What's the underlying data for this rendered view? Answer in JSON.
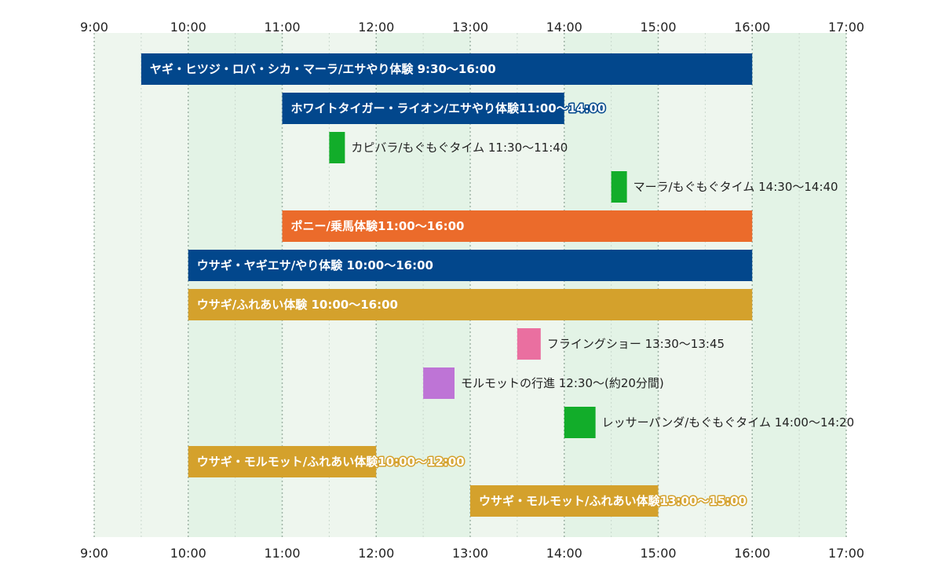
{
  "chart_data": {
    "type": "timeline",
    "x_unit": "hour",
    "xlim": [
      9,
      17
    ],
    "ticks": [
      "9:00",
      "10:00",
      "11:00",
      "12:00",
      "13:00",
      "14:00",
      "15:00",
      "16:00",
      "17:00"
    ],
    "grid": true,
    "tasks": [
      {
        "label": "ヤギ・ヒツジ・ロバ・シカ・マーラ/エサやり体験 9:30〜16:00",
        "start": 9.5,
        "end": 16.0,
        "color": "#02478c",
        "label_style": "inside"
      },
      {
        "label": "ホワイトタイガー・ライオン/エサやり体験11:00〜14:00",
        "start": 11.0,
        "end": 14.0,
        "color": "#02478c",
        "label_style": "inside"
      },
      {
        "label": "カピバラ/もぐもぐタイム 11:30〜11:40",
        "start": 11.5,
        "end": 11.667,
        "color": "#12ad2a",
        "label_style": "outside"
      },
      {
        "label": "マーラ/もぐもぐタイム 14:30〜14:40",
        "start": 14.5,
        "end": 14.667,
        "color": "#12ad2a",
        "label_style": "outside"
      },
      {
        "label": "ポニー/乗馬体験11:00〜16:00",
        "start": 11.0,
        "end": 16.0,
        "color": "#eb6b2b",
        "label_style": "inside"
      },
      {
        "label": "ウサギ・ヤギエサ/やり体験 10:00〜16:00",
        "start": 10.0,
        "end": 16.0,
        "color": "#02478c",
        "label_style": "inside"
      },
      {
        "label": "ウサギ/ふれあい体験 10:00〜16:00",
        "start": 10.0,
        "end": 16.0,
        "color": "#d4a12c",
        "label_style": "inside"
      },
      {
        "label": "フライングショー 13:30〜13:45",
        "start": 13.5,
        "end": 13.75,
        "color": "#ea6fa0",
        "label_style": "outside"
      },
      {
        "label": "モルモットの行進 12:30〜(約20分間)",
        "start": 12.5,
        "end": 12.833,
        "color": "#be74d6",
        "label_style": "outside"
      },
      {
        "label": "レッサーパンダ/もぐもぐタイム 14:00〜14:20",
        "start": 14.0,
        "end": 14.333,
        "color": "#12ad2a",
        "label_style": "outside"
      },
      {
        "label": "ウサギ・モルモット/ふれあい体験10:00〜12:00",
        "start": 10.0,
        "end": 12.0,
        "color": "#d4a12c",
        "label_style": "inside"
      },
      {
        "label": "ウサギ・モルモット/ふれあい体験13:00〜15:00",
        "start": 13.0,
        "end": 15.0,
        "color": "#d4a12c",
        "label_style": "inside"
      }
    ]
  },
  "colors": {
    "band_light": "#eef6ee",
    "band_dark": "#e3f3e6",
    "grid_major": "#9fb3a6",
    "grid_minor": "#c9d8cd"
  }
}
